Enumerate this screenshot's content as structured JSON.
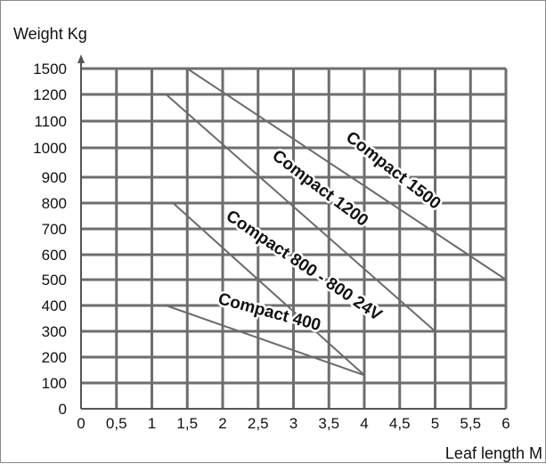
{
  "chart_data": {
    "type": "line",
    "xlabel": "Leaf length M",
    "ylabel": "Weight Kg",
    "xlim": [
      0,
      6
    ],
    "ylim": [
      0,
      1500
    ],
    "x_ticks": [
      {
        "value": 0,
        "label": "0"
      },
      {
        "value": 0.5,
        "label": "0,5"
      },
      {
        "value": 1,
        "label": "1"
      },
      {
        "value": 1.5,
        "label": "1,5"
      },
      {
        "value": 2,
        "label": "2"
      },
      {
        "value": 2.5,
        "label": "2,5"
      },
      {
        "value": 3,
        "label": "3"
      },
      {
        "value": 3.5,
        "label": "3,5"
      },
      {
        "value": 4,
        "label": "4"
      },
      {
        "value": 4.5,
        "label": "4,5"
      },
      {
        "value": 5,
        "label": "5"
      },
      {
        "value": 5.5,
        "label": "5,5"
      },
      {
        "value": 6,
        "label": "6"
      }
    ],
    "y_ticks": [
      {
        "value": 0,
        "label": "0"
      },
      {
        "value": 100,
        "label": "100"
      },
      {
        "value": 200,
        "label": "200"
      },
      {
        "value": 300,
        "label": "300"
      },
      {
        "value": 400,
        "label": "400"
      },
      {
        "value": 500,
        "label": "500"
      },
      {
        "value": 600,
        "label": "600"
      },
      {
        "value": 700,
        "label": "700"
      },
      {
        "value": 800,
        "label": "800"
      },
      {
        "value": 900,
        "label": "900"
      },
      {
        "value": 1000,
        "label": "1000"
      },
      {
        "value": 1100,
        "label": "1100"
      },
      {
        "value": 1200,
        "label": "1200"
      },
      {
        "value": 1500,
        "label": "1500"
      }
    ],
    "grid": true,
    "legend": "none",
    "series": [
      {
        "name": "Compact 1500",
        "points": [
          [
            1.5,
            1500
          ],
          [
            6,
            500
          ]
        ]
      },
      {
        "name": "Compact 1200",
        "points": [
          [
            1.2,
            1200
          ],
          [
            5,
            300
          ]
        ]
      },
      {
        "name": "Compact 800 - 800 24V",
        "points": [
          [
            1.3,
            800
          ],
          [
            4,
            130
          ]
        ]
      },
      {
        "name": "Compact 400",
        "points": [
          [
            1.2,
            400
          ],
          [
            4,
            130
          ]
        ]
      }
    ]
  }
}
